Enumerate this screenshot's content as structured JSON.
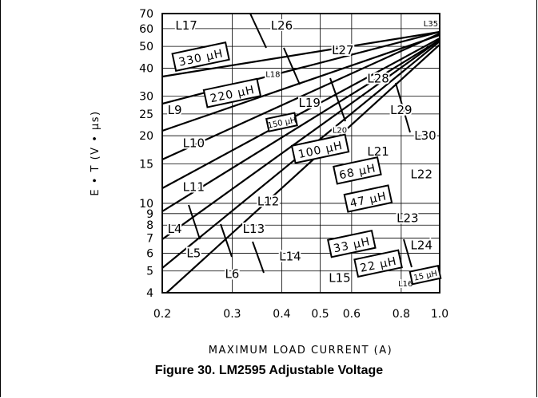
{
  "chart_data": {
    "type": "inductor-selection-nomograph",
    "xlabel": "MAXIMUM LOAD CURRENT (A)",
    "ylabel": "E • T (V • µs)",
    "x_scale": "log",
    "y_scale": "log",
    "xlim": [
      0.2,
      1.0
    ],
    "ylim": [
      4,
      70
    ],
    "x_ticks": [
      {
        "value": 0.2,
        "label": "0.2"
      },
      {
        "value": 0.3,
        "label": "0.3"
      },
      {
        "value": 0.4,
        "label": "0.4"
      },
      {
        "value": 0.5,
        "label": "0.5"
      },
      {
        "value": 0.6,
        "label": "0.6"
      },
      {
        "value": 0.8,
        "label": "0.8"
      },
      {
        "value": 1.0,
        "label": "1.0"
      }
    ],
    "y_ticks": [
      {
        "value": 4,
        "label": "4"
      },
      {
        "value": 5,
        "label": "5"
      },
      {
        "value": 6,
        "label": "6"
      },
      {
        "value": 7,
        "label": "7"
      },
      {
        "value": 8,
        "label": "8"
      },
      {
        "value": 9,
        "label": "9"
      },
      {
        "value": 10,
        "label": "10"
      },
      {
        "value": 15,
        "label": "15"
      },
      {
        "value": 20,
        "label": "20"
      },
      {
        "value": 25,
        "label": "25"
      },
      {
        "value": 30,
        "label": "30"
      },
      {
        "value": 40,
        "label": "40"
      },
      {
        "value": 50,
        "label": "50"
      },
      {
        "value": 60,
        "label": "60"
      },
      {
        "value": 70,
        "label": "70"
      }
    ],
    "inductance_bands": [
      {
        "label": "330 µH",
        "x": 0.25,
        "y": 45
      },
      {
        "label": "220 µH",
        "x": 0.3,
        "y": 31
      },
      {
        "label": "150 µH",
        "x": 0.4,
        "y": 23
      },
      {
        "label": "100 µH",
        "x": 0.5,
        "y": 17.5
      },
      {
        "label": "68 µH",
        "x": 0.62,
        "y": 14
      },
      {
        "label": "47 µH",
        "x": 0.66,
        "y": 10.5
      },
      {
        "label": "33 µH",
        "x": 0.6,
        "y": 6.6
      },
      {
        "label": "22 µH",
        "x": 0.7,
        "y": 5.4
      },
      {
        "label": "15 µH",
        "x": 0.92,
        "y": 4.8
      }
    ],
    "regions": [
      {
        "label": "L17",
        "x": 0.23,
        "y": 62
      },
      {
        "label": "L26",
        "x": 0.4,
        "y": 62
      },
      {
        "label": "L35",
        "x": 0.95,
        "y": 64
      },
      {
        "label": "L27",
        "x": 0.57,
        "y": 48
      },
      {
        "label": "L18",
        "x": 0.38,
        "y": 38
      },
      {
        "label": "L28",
        "x": 0.7,
        "y": 36
      },
      {
        "label": "L9",
        "x": 0.215,
        "y": 26
      },
      {
        "label": "L19",
        "x": 0.47,
        "y": 28
      },
      {
        "label": "L29",
        "x": 0.8,
        "y": 26
      },
      {
        "label": "L20",
        "x": 0.56,
        "y": 21.5
      },
      {
        "label": "L10",
        "x": 0.24,
        "y": 18.5
      },
      {
        "label": "L30",
        "x": 0.92,
        "y": 20
      },
      {
        "label": "L21",
        "x": 0.7,
        "y": 17
      },
      {
        "label": "L22",
        "x": 0.9,
        "y": 13.5
      },
      {
        "label": "L11",
        "x": 0.24,
        "y": 11.8
      },
      {
        "label": "L12",
        "x": 0.37,
        "y": 10.2
      },
      {
        "label": "L23",
        "x": 0.83,
        "y": 8.6
      },
      {
        "label": "L4",
        "x": 0.215,
        "y": 7.7
      },
      {
        "label": "L13",
        "x": 0.34,
        "y": 7.7
      },
      {
        "label": "L24",
        "x": 0.9,
        "y": 6.5
      },
      {
        "label": "L5",
        "x": 0.24,
        "y": 6
      },
      {
        "label": "L14",
        "x": 0.42,
        "y": 5.8
      },
      {
        "label": "L6",
        "x": 0.3,
        "y": 4.85
      },
      {
        "label": "L15",
        "x": 0.56,
        "y": 4.65
      },
      {
        "label": "L16",
        "x": 0.82,
        "y": 4.45
      }
    ]
  },
  "caption": "Figure 30. LM2595 Adjustable Voltage"
}
